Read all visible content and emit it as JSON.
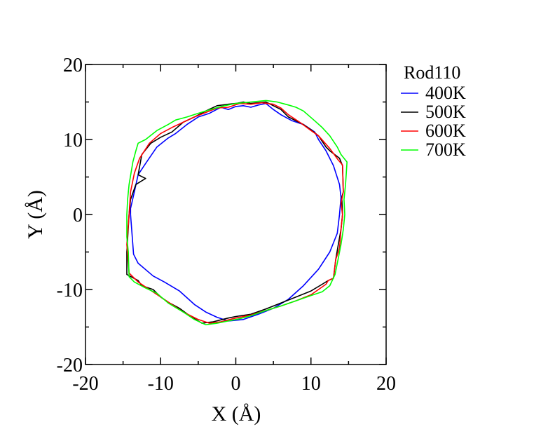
{
  "chart_data": {
    "type": "line",
    "title": "",
    "xlabel": "X (Å)",
    "ylabel": "Y (Å)",
    "xlim": [
      -20,
      20
    ],
    "ylim": [
      -20,
      20
    ],
    "xticks": [
      -20,
      -10,
      0,
      10,
      20
    ],
    "yticks": [
      -20,
      -10,
      0,
      10,
      20
    ],
    "xtick_labels": [
      "-20",
      "-10",
      "0",
      "10",
      "20"
    ],
    "ytick_labels": [
      "-20",
      "-10",
      "0",
      "10",
      "20"
    ],
    "grid": false,
    "legend": {
      "title": "Rod110",
      "placement": "right-outside-top"
    },
    "series": [
      {
        "name": "400K",
        "color": "#0000ff",
        "points": [
          [
            -14,
            0
          ],
          [
            -13.6,
            -5.3
          ],
          [
            -13,
            -6.5
          ],
          [
            -11,
            -8.2
          ],
          [
            -9.5,
            -9
          ],
          [
            -7.5,
            -10.2
          ],
          [
            -5.5,
            -12
          ],
          [
            -4,
            -13
          ],
          [
            -2.5,
            -13.7
          ],
          [
            -1,
            -14.2
          ],
          [
            1,
            -14
          ],
          [
            3,
            -13.3
          ],
          [
            5,
            -12.5
          ],
          [
            7,
            -11.3
          ],
          [
            9,
            -9.5
          ],
          [
            11,
            -7.3
          ],
          [
            12.5,
            -5
          ],
          [
            13.5,
            -2.5
          ],
          [
            13.8,
            0
          ],
          [
            14,
            2.3
          ],
          [
            13.8,
            4
          ],
          [
            13,
            6.5
          ],
          [
            12,
            8.5
          ],
          [
            11,
            10
          ],
          [
            10.5,
            11
          ],
          [
            9,
            12
          ],
          [
            7.5,
            12.5
          ],
          [
            6,
            13.3
          ],
          [
            5,
            14
          ],
          [
            4,
            14.8
          ],
          [
            3,
            14.6
          ],
          [
            2,
            14.3
          ],
          [
            1,
            14.5
          ],
          [
            0,
            14.4
          ],
          [
            -1,
            14
          ],
          [
            -2,
            14.3
          ],
          [
            -3.5,
            13.5
          ],
          [
            -5,
            13
          ],
          [
            -6.5,
            12
          ],
          [
            -8,
            10.8
          ],
          [
            -9,
            10.2
          ],
          [
            -10.5,
            9
          ],
          [
            -12,
            6.8
          ],
          [
            -13,
            5.3
          ],
          [
            -13.5,
            3
          ],
          [
            -14,
            0.8
          ],
          [
            -14,
            0
          ]
        ]
      },
      {
        "name": "500K",
        "color": "#000000",
        "points": [
          [
            -14.2,
            0
          ],
          [
            -14.5,
            -5
          ],
          [
            -14.5,
            -8
          ],
          [
            -13,
            -8.8
          ],
          [
            -12.5,
            -9.5
          ],
          [
            -11,
            -10
          ],
          [
            -10,
            -11
          ],
          [
            -9,
            -11.7
          ],
          [
            -7.5,
            -12.5
          ],
          [
            -6,
            -13.6
          ],
          [
            -4.5,
            -14.5
          ],
          [
            -3,
            -14.3
          ],
          [
            -1,
            -13.8
          ],
          [
            0,
            -13.6
          ],
          [
            2,
            -13.3
          ],
          [
            4,
            -12.6
          ],
          [
            6,
            -11.8
          ],
          [
            8,
            -11
          ],
          [
            10,
            -10.2
          ],
          [
            11.5,
            -9.3
          ],
          [
            12.3,
            -8.8
          ],
          [
            13,
            -8.5
          ],
          [
            13.3,
            -6
          ],
          [
            13.6,
            -4.2
          ],
          [
            14,
            -2
          ],
          [
            14.2,
            0
          ],
          [
            14.1,
            2.3
          ],
          [
            14.3,
            3
          ],
          [
            14.2,
            6.5
          ],
          [
            13.8,
            7.5
          ],
          [
            12.5,
            8.5
          ],
          [
            12,
            9
          ],
          [
            11,
            10.5
          ],
          [
            10,
            11.3
          ],
          [
            9,
            12
          ],
          [
            8,
            12.5
          ],
          [
            7,
            13
          ],
          [
            6,
            14
          ],
          [
            5,
            14.5
          ],
          [
            4,
            15
          ],
          [
            3,
            14.9
          ],
          [
            2,
            14.8
          ],
          [
            1,
            15
          ],
          [
            0,
            14.8
          ],
          [
            -1,
            14.7
          ],
          [
            -2.5,
            14.5
          ],
          [
            -4,
            13.8
          ],
          [
            -5.5,
            13
          ],
          [
            -7,
            12.3
          ],
          [
            -8.5,
            11
          ],
          [
            -10,
            10.3
          ],
          [
            -11.3,
            9.5
          ],
          [
            -12.5,
            8
          ],
          [
            -13,
            5.3
          ],
          [
            -12,
            4.8
          ],
          [
            -13.3,
            4
          ],
          [
            -14,
            2
          ],
          [
            -14.2,
            0
          ]
        ]
      },
      {
        "name": "600K",
        "color": "#ff0000",
        "points": [
          [
            -14.2,
            0
          ],
          [
            -14.5,
            -4
          ],
          [
            -14.2,
            -7.8
          ],
          [
            -13,
            -9
          ],
          [
            -11.5,
            -10
          ],
          [
            -10,
            -11
          ],
          [
            -8.5,
            -12
          ],
          [
            -7,
            -13
          ],
          [
            -5,
            -14
          ],
          [
            -3.5,
            -14.5
          ],
          [
            -2,
            -14.3
          ],
          [
            0,
            -13.8
          ],
          [
            2,
            -13.4
          ],
          [
            4,
            -12.8
          ],
          [
            6,
            -12.2
          ],
          [
            8,
            -11.5
          ],
          [
            10,
            -10.7
          ],
          [
            12,
            -9.3
          ],
          [
            12.3,
            -8.8
          ],
          [
            13,
            -8.5
          ],
          [
            13.3,
            -6
          ],
          [
            13.8,
            -4.5
          ],
          [
            14,
            -2
          ],
          [
            14.2,
            0
          ],
          [
            14,
            1.5
          ],
          [
            14.3,
            3
          ],
          [
            14.2,
            6.6
          ],
          [
            13.6,
            7.3
          ],
          [
            12.5,
            8.8
          ],
          [
            11,
            10.5
          ],
          [
            10,
            11.2
          ],
          [
            8.5,
            12.3
          ],
          [
            7,
            13.3
          ],
          [
            6,
            14.2
          ],
          [
            5,
            14.7
          ],
          [
            3.5,
            14.9
          ],
          [
            2,
            14.7
          ],
          [
            0.5,
            14.8
          ],
          [
            -1,
            14.3
          ],
          [
            -2.5,
            14.2
          ],
          [
            -4,
            13.6
          ],
          [
            -5.5,
            13
          ],
          [
            -7,
            12.3
          ],
          [
            -8.5,
            11.6
          ],
          [
            -10,
            10.8
          ],
          [
            -11.5,
            9.5
          ],
          [
            -12.8,
            7.5
          ],
          [
            -13.5,
            5.5
          ],
          [
            -14,
            3
          ],
          [
            -14.2,
            0
          ]
        ]
      },
      {
        "name": "700K",
        "color": "#00ff00",
        "points": [
          [
            -14.5,
            0
          ],
          [
            -14.5,
            -3
          ],
          [
            -14.3,
            -5
          ],
          [
            -14.2,
            -8.3
          ],
          [
            -13.5,
            -9
          ],
          [
            -12,
            -9.8
          ],
          [
            -10.5,
            -10.5
          ],
          [
            -9,
            -11.8
          ],
          [
            -7,
            -13
          ],
          [
            -5.5,
            -14
          ],
          [
            -4,
            -14.7
          ],
          [
            -2.5,
            -14.5
          ],
          [
            -1,
            -14.2
          ],
          [
            0.5,
            -13.9
          ],
          [
            2,
            -13.5
          ],
          [
            4,
            -12.8
          ],
          [
            6,
            -12.2
          ],
          [
            8,
            -11.5
          ],
          [
            10,
            -10.8
          ],
          [
            11.5,
            -10.3
          ],
          [
            12.5,
            -9.5
          ],
          [
            13.2,
            -8
          ],
          [
            13.6,
            -6
          ],
          [
            14,
            -4
          ],
          [
            14.3,
            -2
          ],
          [
            14.5,
            0
          ],
          [
            14.4,
            2
          ],
          [
            14.6,
            4
          ],
          [
            14.8,
            7
          ],
          [
            14,
            8
          ],
          [
            13.5,
            9
          ],
          [
            12.5,
            10.5
          ],
          [
            11.5,
            11.6
          ],
          [
            10.5,
            12.5
          ],
          [
            9,
            13.8
          ],
          [
            8,
            14.3
          ],
          [
            7,
            14.6
          ],
          [
            5.5,
            15
          ],
          [
            4,
            15.2
          ],
          [
            2,
            15
          ],
          [
            0,
            14.8
          ],
          [
            -1.5,
            14.5
          ],
          [
            -3,
            14.1
          ],
          [
            -5,
            13.5
          ],
          [
            -6.5,
            13
          ],
          [
            -8,
            12.6
          ],
          [
            -9,
            12
          ],
          [
            -10.5,
            11.2
          ],
          [
            -12,
            10
          ],
          [
            -13,
            9.5
          ],
          [
            -13.3,
            8.5
          ],
          [
            -13.7,
            7
          ],
          [
            -14.2,
            4
          ],
          [
            -14.4,
            2
          ],
          [
            -14.5,
            0
          ]
        ]
      }
    ]
  }
}
